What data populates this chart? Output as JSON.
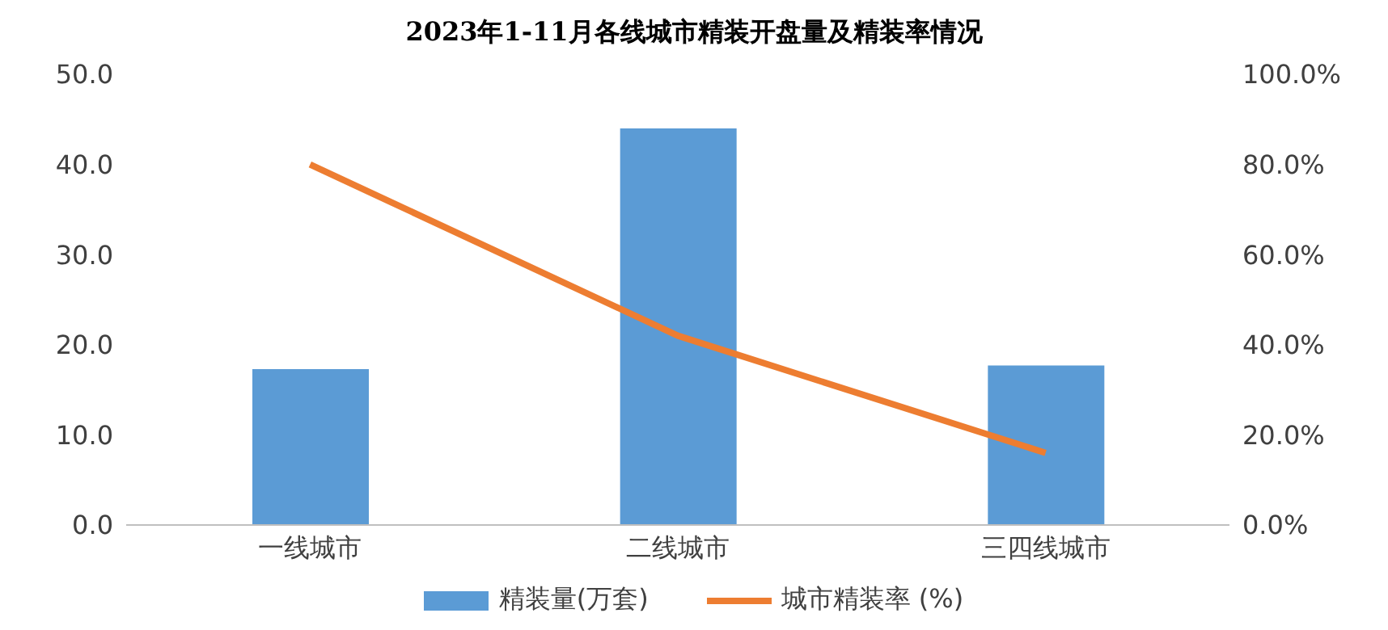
{
  "chart_data": {
    "type": "bar",
    "title": "2023年1-11月各线城市精装开盘量及精装率情况",
    "categories": [
      "一线城市",
      "二线城市",
      "三四线城市"
    ],
    "series": [
      {
        "name": "精装量(万套)",
        "color": "#5b9bd5",
        "values": [
          17.3,
          44.0,
          17.7
        ]
      },
      {
        "name": "城市精装率 (%)",
        "type": "line",
        "axis": "y2",
        "color": "#ed7d31",
        "values": [
          80,
          42,
          16
        ]
      }
    ],
    "ylim": [
      0,
      50
    ],
    "yticks": [
      {
        "value": 0,
        "label": "0.0"
      },
      {
        "value": 10,
        "label": "10.0"
      },
      {
        "value": 20,
        "label": "20.0"
      },
      {
        "value": 30,
        "label": "30.0"
      },
      {
        "value": 40,
        "label": "40.0"
      },
      {
        "value": 50,
        "label": "50.0"
      }
    ],
    "y2lim": [
      0,
      100
    ],
    "y2ticks": [
      {
        "value": 0,
        "label": "0.0%"
      },
      {
        "value": 20,
        "label": "20.0%"
      },
      {
        "value": 40,
        "label": "40.0%"
      },
      {
        "value": 60,
        "label": "60.0%"
      },
      {
        "value": 80,
        "label": "80.0%"
      },
      {
        "value": 100,
        "label": "100.0%"
      }
    ],
    "grid": false,
    "legend": "bottom",
    "marker": "none"
  }
}
